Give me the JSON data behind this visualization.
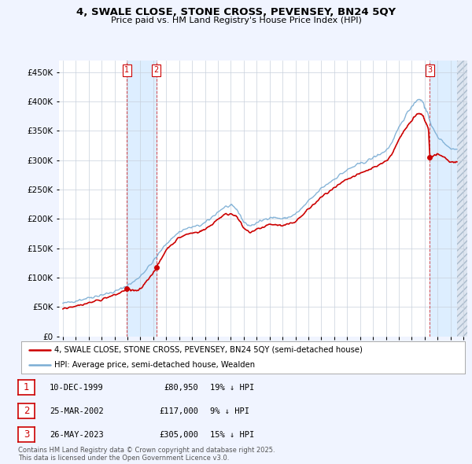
{
  "title": "4, SWALE CLOSE, STONE CROSS, PEVENSEY, BN24 5QY",
  "subtitle": "Price paid vs. HM Land Registry's House Price Index (HPI)",
  "legend_line1": "4, SWALE CLOSE, STONE CROSS, PEVENSEY, BN24 5QY (semi-detached house)",
  "legend_line2": "HPI: Average price, semi-detached house, Wealden",
  "footer": "Contains HM Land Registry data © Crown copyright and database right 2025.\nThis data is licensed under the Open Government Licence v3.0.",
  "sale_color": "#cc0000",
  "hpi_color": "#7aadd4",
  "shade_color": "#ddeeff",
  "background_color": "#f0f4ff",
  "plot_bg_color": "#ffffff",
  "transactions": [
    {
      "num": 1,
      "date": "10-DEC-1999",
      "price": 80950,
      "pct": "19%",
      "dir": "↓",
      "year": 1999.94
    },
    {
      "num": 2,
      "date": "25-MAR-2002",
      "price": 117000,
      "pct": "9%",
      "dir": "↓",
      "year": 2002.23
    },
    {
      "num": 3,
      "date": "26-MAY-2023",
      "price": 305000,
      "pct": "15%",
      "dir": "↓",
      "year": 2023.4
    }
  ],
  "ylim": [
    0,
    470000
  ],
  "yticks": [
    0,
    50000,
    100000,
    150000,
    200000,
    250000,
    300000,
    350000,
    400000,
    450000
  ],
  "ytick_labels": [
    "£0",
    "£50K",
    "£100K",
    "£150K",
    "£200K",
    "£250K",
    "£300K",
    "£350K",
    "£400K",
    "£450K"
  ],
  "xlim_start": 1994.7,
  "xlim_end": 2026.3,
  "data_end_year": 2025.5,
  "hpi_anchors_x": [
    1995.0,
    1995.5,
    1996.0,
    1996.5,
    1997.0,
    1997.5,
    1998.0,
    1998.5,
    1999.0,
    1999.5,
    2000.0,
    2000.5,
    2001.0,
    2001.5,
    2002.0,
    2002.5,
    2003.0,
    2003.5,
    2004.0,
    2004.5,
    2005.0,
    2005.5,
    2006.0,
    2006.5,
    2007.0,
    2007.5,
    2008.0,
    2008.3,
    2008.7,
    2009.0,
    2009.5,
    2010.0,
    2010.5,
    2011.0,
    2011.5,
    2012.0,
    2012.5,
    2013.0,
    2013.5,
    2014.0,
    2014.5,
    2015.0,
    2015.5,
    2016.0,
    2016.5,
    2017.0,
    2017.5,
    2018.0,
    2018.5,
    2019.0,
    2019.5,
    2020.0,
    2020.5,
    2021.0,
    2021.5,
    2022.0,
    2022.3,
    2022.6,
    2022.9,
    2023.0,
    2023.3,
    2023.6,
    2024.0,
    2024.5,
    2025.0,
    2025.5
  ],
  "hpi_anchors_y": [
    56000,
    58000,
    61000,
    63000,
    66000,
    68000,
    71000,
    73000,
    76000,
    81000,
    87000,
    93000,
    103000,
    115000,
    128000,
    143000,
    158000,
    168000,
    178000,
    183000,
    186000,
    188000,
    193000,
    202000,
    212000,
    220000,
    222000,
    220000,
    208000,
    194000,
    188000,
    193000,
    198000,
    203000,
    202000,
    200000,
    203000,
    208000,
    218000,
    230000,
    240000,
    252000,
    260000,
    268000,
    276000,
    283000,
    289000,
    294000,
    298000,
    304000,
    310000,
    316000,
    330000,
    355000,
    375000,
    392000,
    400000,
    405000,
    398000,
    390000,
    375000,
    355000,
    340000,
    330000,
    320000,
    318000
  ],
  "sale_anchors_x": [
    1995.0,
    1995.5,
    1996.0,
    1996.5,
    1997.0,
    1997.5,
    1998.0,
    1998.5,
    1999.0,
    1999.5,
    1999.94,
    2000.3,
    2000.7,
    2001.0,
    2001.5,
    2002.0,
    2002.23,
    2002.6,
    2003.0,
    2003.5,
    2004.0,
    2004.5,
    2005.0,
    2005.5,
    2006.0,
    2006.5,
    2007.0,
    2007.5,
    2008.0,
    2008.3,
    2008.7,
    2009.0,
    2009.5,
    2010.0,
    2010.5,
    2011.0,
    2011.5,
    2012.0,
    2012.5,
    2013.0,
    2013.5,
    2014.0,
    2014.5,
    2015.0,
    2015.5,
    2016.0,
    2016.5,
    2017.0,
    2017.5,
    2018.0,
    2018.5,
    2019.0,
    2019.5,
    2020.0,
    2020.5,
    2021.0,
    2021.5,
    2022.0,
    2022.3,
    2022.6,
    2022.9,
    2023.0,
    2023.3,
    2023.4,
    2023.7,
    2024.0,
    2024.5,
    2025.0,
    2025.5
  ],
  "sale_anchors_y": [
    48000,
    50000,
    52000,
    54000,
    57000,
    60000,
    63000,
    67000,
    70000,
    75000,
    80950,
    79000,
    77000,
    80000,
    95000,
    109000,
    117000,
    131000,
    148000,
    158000,
    168000,
    173000,
    176000,
    178000,
    182000,
    190000,
    200000,
    207000,
    209000,
    207000,
    196000,
    183000,
    177000,
    182000,
    186000,
    191000,
    190000,
    188000,
    191000,
    196000,
    205000,
    217000,
    226000,
    237000,
    245000,
    252000,
    260000,
    267000,
    272000,
    277000,
    282000,
    287000,
    293000,
    298000,
    311000,
    334000,
    353000,
    369000,
    376000,
    381000,
    374000,
    367000,
    353000,
    305000,
    308000,
    310000,
    305000,
    296000,
    298000
  ]
}
